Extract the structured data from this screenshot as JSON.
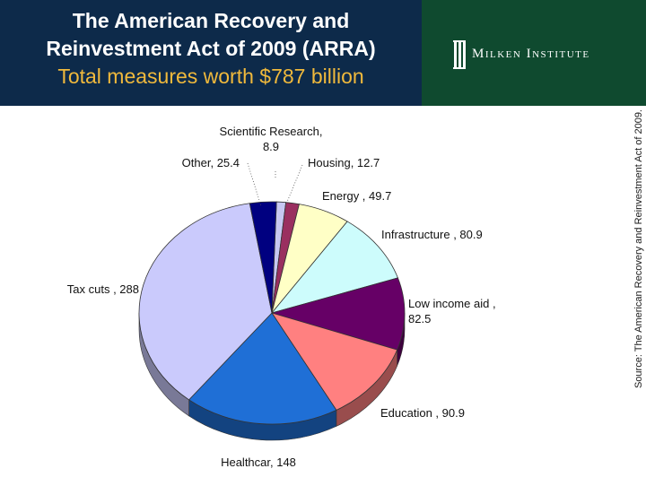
{
  "header": {
    "title_line1": "The American Recovery and",
    "title_line2": "Reinvestment Act of 2009 (ARRA)",
    "subtitle": "Total measures worth $787 billion",
    "logo_text": "Milken Institute"
  },
  "source_note": "Source: The American Recovery and Reinvestment Act of 2009.",
  "colors": {
    "header_bg": "#0d2a4a",
    "logo_bg": "#0f4a2f",
    "subtitle": "#f0b93c"
  },
  "chart_data": {
    "type": "pie",
    "title": "Total measures worth $787 billion",
    "slices": [
      {
        "name": "Scientific Research",
        "value": 8.9,
        "color": "#c7c7f2",
        "label_lines": [
          "Scientific Research,",
          "8.9"
        ]
      },
      {
        "name": "Housing",
        "value": 12.7,
        "color": "#9a2f60",
        "label_lines": [
          "Housing, 12.7"
        ]
      },
      {
        "name": "Energy",
        "value": 49.7,
        "color": "#ffffc6",
        "label_lines": [
          "Energy , 49.7"
        ]
      },
      {
        "name": "Infrastructure",
        "value": 80.9,
        "color": "#cdfcfc",
        "label_lines": [
          "Infrastructure , 80.9"
        ]
      },
      {
        "name": "Low income aid",
        "value": 82.5,
        "color": "#660066",
        "label_lines": [
          "Low income aid ,",
          "82.5"
        ]
      },
      {
        "name": "Education",
        "value": 90.9,
        "color": "#ff8080",
        "label_lines": [
          "Education , 90.9"
        ]
      },
      {
        "name": "Healthcare",
        "value": 148,
        "color": "#1f6fd6",
        "label_lines": [
          "Healthcar, 148"
        ]
      },
      {
        "name": "Tax cuts",
        "value": 288,
        "color": "#cacafc",
        "label_lines": [
          "Tax cuts , 288"
        ]
      },
      {
        "name": "Other",
        "value": 25.4,
        "color": "#000080",
        "label_lines": [
          "Other, 25.4"
        ]
      }
    ]
  }
}
